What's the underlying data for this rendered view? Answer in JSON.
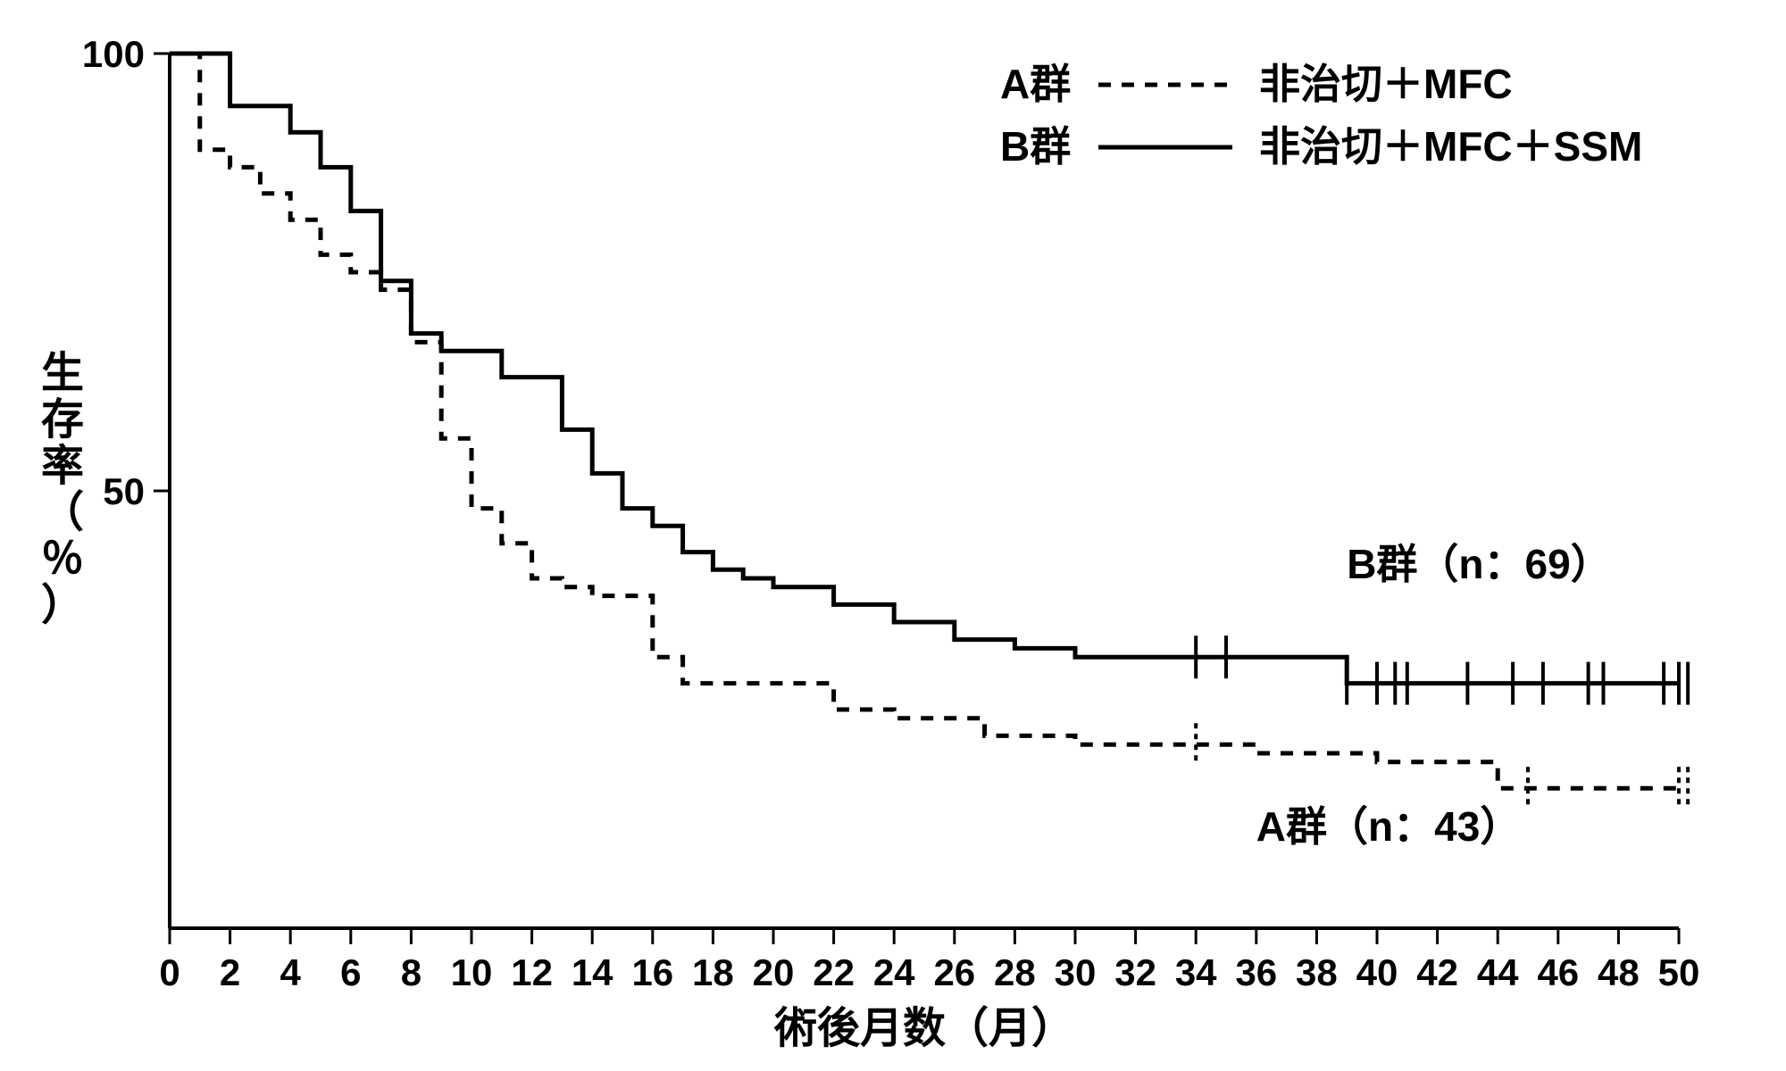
{
  "chart": {
    "type": "kaplan-meier-step",
    "background_color": "#ffffff",
    "stroke_color": "#000000",
    "axis_line_width": 4,
    "x": {
      "label": "術後月数（月）",
      "min": 0,
      "max": 50,
      "ticks": [
        0,
        2,
        4,
        6,
        8,
        10,
        12,
        14,
        16,
        18,
        20,
        22,
        24,
        26,
        28,
        30,
        32,
        34,
        36,
        38,
        40,
        42,
        44,
        46,
        48,
        50
      ],
      "tick_fontsize": 42,
      "title_fontsize": 48
    },
    "y": {
      "label": "生存率（％）",
      "min": 0,
      "max": 100,
      "ticks": [
        50,
        100
      ],
      "tick_fontsize": 42,
      "title_fontsize": 48
    },
    "legend": {
      "items": [
        {
          "key": "A",
          "text": "A群",
          "dash_sample": "----",
          "desc": "非治切＋MFC"
        },
        {
          "key": "B",
          "text": "B群",
          "dash_sample": "——",
          "desc": "非治切＋MFC＋SSM"
        }
      ],
      "fontsize": 46
    },
    "series": [
      {
        "key": "B",
        "label": "B群（n：69）",
        "n": 69,
        "line_style": "solid",
        "line_width": 5,
        "color": "#000000",
        "points": [
          [
            0,
            100
          ],
          [
            2,
            94
          ],
          [
            4,
            91
          ],
          [
            5,
            87
          ],
          [
            6,
            82
          ],
          [
            7,
            74
          ],
          [
            8,
            68
          ],
          [
            9,
            66
          ],
          [
            11,
            63
          ],
          [
            13,
            57
          ],
          [
            14,
            52
          ],
          [
            15,
            48
          ],
          [
            16,
            46
          ],
          [
            17,
            43
          ],
          [
            18,
            41
          ],
          [
            19,
            40
          ],
          [
            20,
            39
          ],
          [
            22,
            37
          ],
          [
            24,
            35
          ],
          [
            26,
            33
          ],
          [
            28,
            32
          ],
          [
            30,
            31
          ],
          [
            34,
            31
          ],
          [
            36,
            31
          ],
          [
            39,
            28
          ],
          [
            50,
            28
          ]
        ],
        "censor_marks": [
          34,
          35,
          39,
          40,
          40.6,
          41,
          43,
          44.5,
          45.5,
          47,
          47.5,
          49.5,
          50,
          50.3
        ],
        "label_xy": [
          39,
          40
        ]
      },
      {
        "key": "A",
        "label": "A群（n：43）",
        "n": 43,
        "line_style": "dashed",
        "line_width": 5,
        "dash_pattern": "14 12",
        "color": "#000000",
        "points": [
          [
            0,
            100
          ],
          [
            1,
            89
          ],
          [
            2,
            87
          ],
          [
            3,
            84
          ],
          [
            4,
            81
          ],
          [
            5,
            77
          ],
          [
            6,
            75
          ],
          [
            7,
            73
          ],
          [
            8,
            67
          ],
          [
            9,
            56
          ],
          [
            10,
            48
          ],
          [
            11,
            44
          ],
          [
            12,
            40
          ],
          [
            13,
            39
          ],
          [
            14,
            38
          ],
          [
            16,
            31
          ],
          [
            17,
            28
          ],
          [
            21,
            28
          ],
          [
            22,
            25
          ],
          [
            24,
            24
          ],
          [
            27,
            22
          ],
          [
            30,
            21
          ],
          [
            34,
            21
          ],
          [
            36,
            20
          ],
          [
            40,
            19
          ],
          [
            44,
            16
          ],
          [
            50,
            16
          ]
        ],
        "censor_marks": [
          34,
          45,
          50,
          50.3
        ],
        "label_xy": [
          36,
          10
        ]
      }
    ]
  }
}
